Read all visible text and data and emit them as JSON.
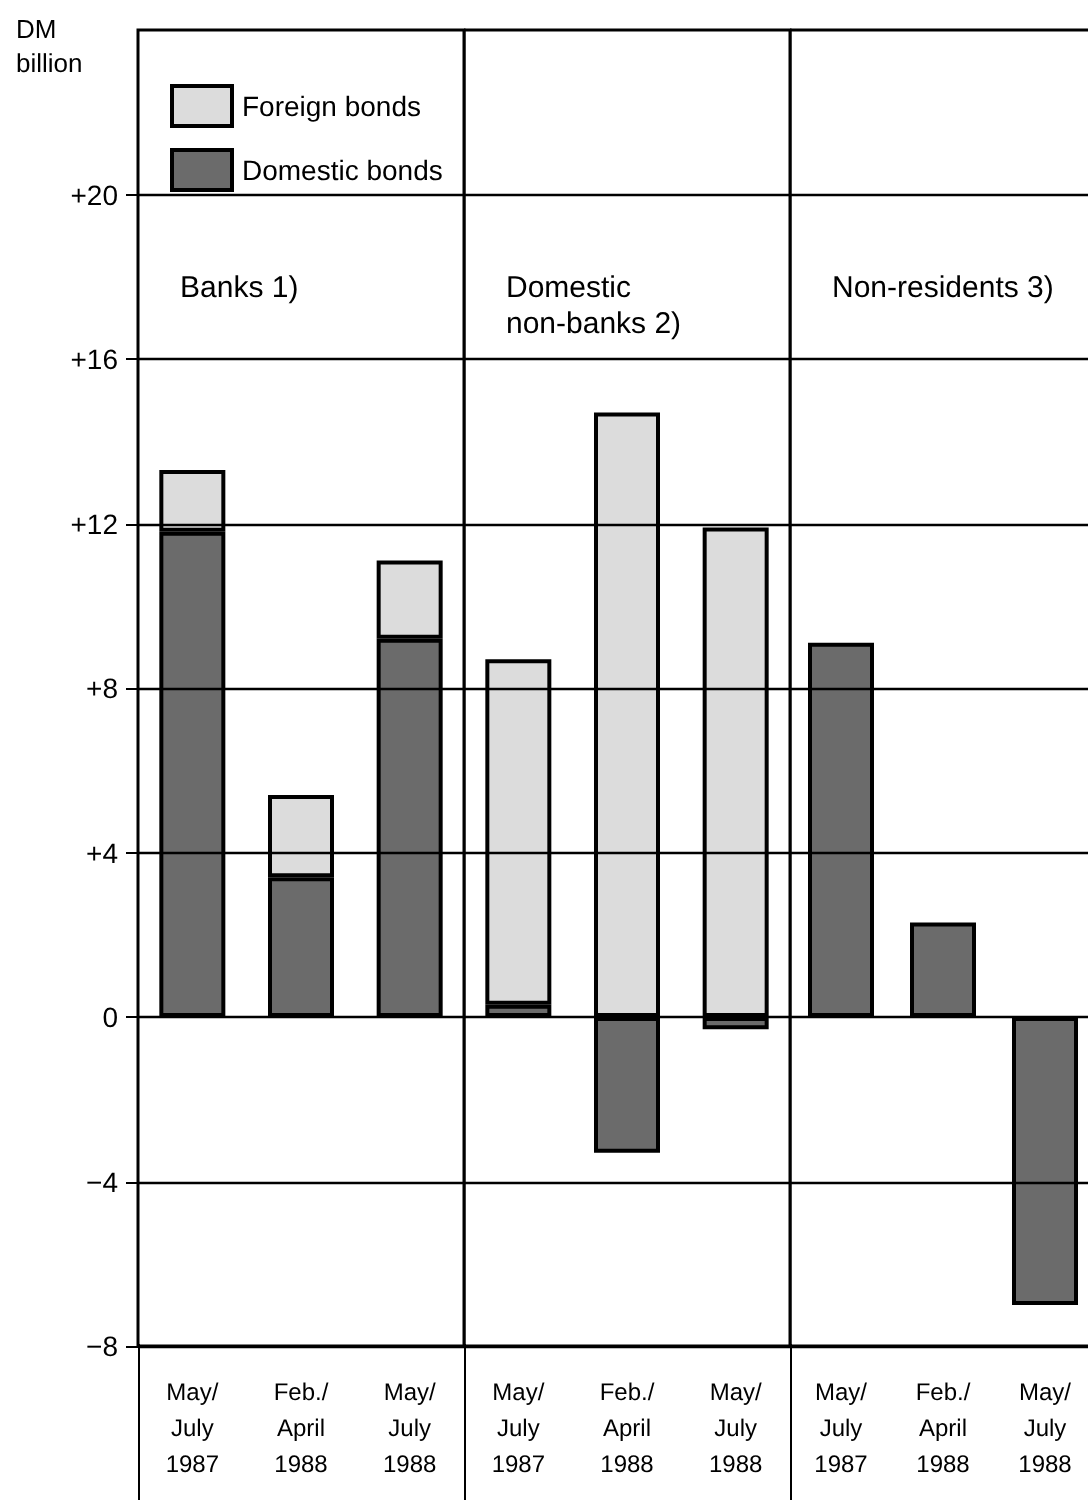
{
  "chart_data": [
    {
      "type": "bar",
      "title": "Banks 1)",
      "ylabel": "DM billion",
      "categories": [
        "May/ July 1987",
        "Feb./ April 1988",
        "May/ July 1988"
      ],
      "stacked": true,
      "legend": "top left",
      "grid": "y",
      "series": [
        {
          "name": "Domestic bonds",
          "color": "#6b6b6b",
          "values": [
            11.8,
            3.4,
            9.2
          ]
        },
        {
          "name": "Foreign bonds",
          "color": "#dcdcdc",
          "values": [
            1.5,
            2.0,
            1.9
          ]
        }
      ],
      "ylim": [
        -8,
        24
      ],
      "yticks": [
        {
          "value": -8,
          "label": "−8"
        },
        {
          "value": -4,
          "label": "−4"
        },
        0,
        {
          "value": 4,
          "label": "+4"
        },
        {
          "value": 8,
          "label": "+8"
        },
        {
          "value": 12,
          "label": "+12"
        },
        {
          "value": 16,
          "label": "+16"
        },
        {
          "value": 20,
          "label": "+20"
        }
      ]
    },
    {
      "type": "bar",
      "title": "Domestic non-banks 2)",
      "categories": [
        "May/ July 1987",
        "Feb./ April 1988",
        "May/ July 1988"
      ],
      "stacked": true,
      "grid": "y",
      "tick_labels": "x",
      "series": [
        {
          "color": "#6b6b6b",
          "values": [
            0.3,
            -3.3,
            -0.3
          ]
        },
        {
          "color": "#dcdcdc",
          "values": [
            8.4,
            14.7,
            11.9
          ]
        }
      ],
      "ylim": [
        -8,
        24
      ],
      "yticks": [
        -8,
        -4,
        0,
        4,
        8,
        12,
        16,
        20
      ]
    },
    {
      "type": "bar",
      "title": "Non-residents 3)",
      "categories": [
        "May/ July 1987",
        "Feb./ April 1988",
        "May/ July 1988"
      ],
      "stacked": true,
      "grid": "y",
      "tick_labels": "x",
      "series": [
        {
          "color": "#6b6b6b",
          "values": [
            9.1,
            2.3,
            -7.0
          ]
        },
        {
          "color": "#dcdcdc",
          "values": [
            null,
            null,
            null
          ]
        }
      ],
      "ylim": [
        -8,
        24
      ],
      "yticks": [
        -8,
        -4,
        0,
        4,
        8,
        12,
        16,
        20
      ]
    }
  ]
}
